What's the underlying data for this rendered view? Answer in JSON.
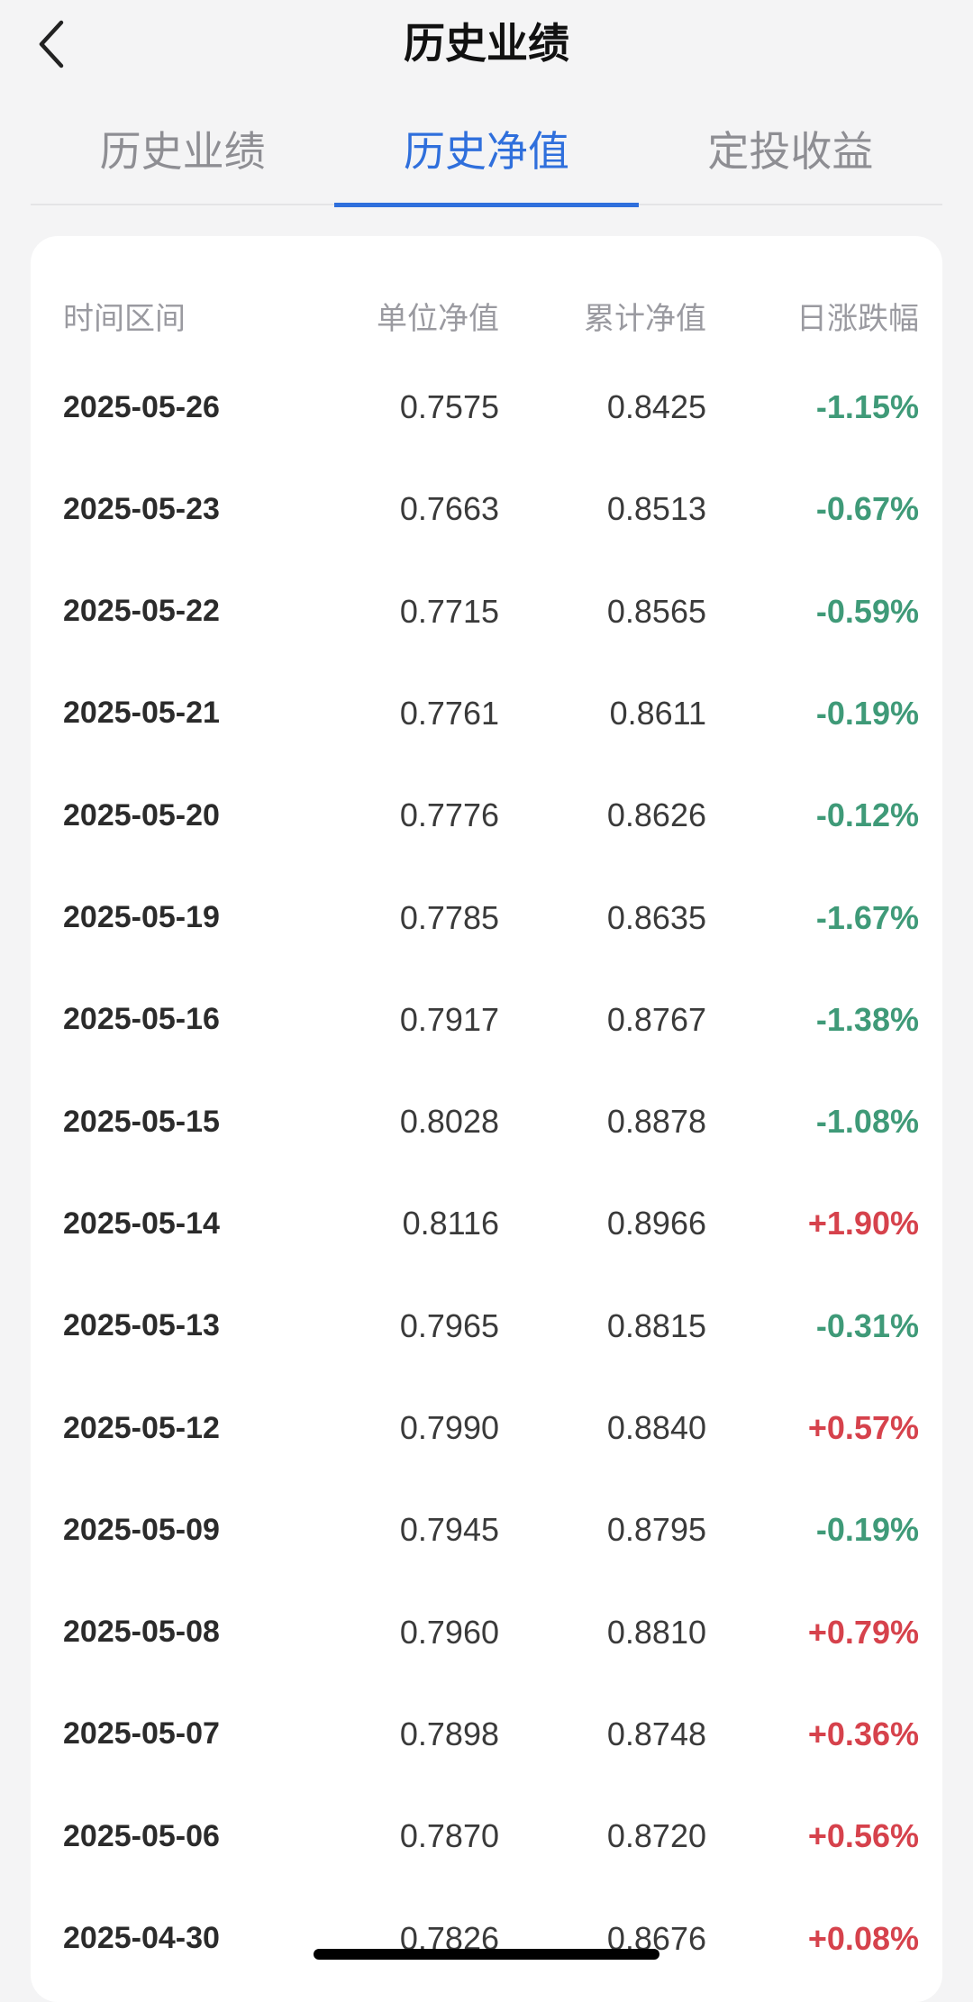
{
  "header": {
    "title": "历史业绩"
  },
  "tabs": [
    {
      "label": "历史业绩",
      "active": false
    },
    {
      "label": "历史净值",
      "active": true
    },
    {
      "label": "定投收益",
      "active": false
    }
  ],
  "table": {
    "columns": [
      "时间区间",
      "单位净值",
      "累计净值",
      "日涨跌幅"
    ],
    "rows": [
      {
        "date": "2025-05-26",
        "unit_nav": "0.7575",
        "acc_nav": "0.8425",
        "change": "-1.15%",
        "dir": "down"
      },
      {
        "date": "2025-05-23",
        "unit_nav": "0.7663",
        "acc_nav": "0.8513",
        "change": "-0.67%",
        "dir": "down"
      },
      {
        "date": "2025-05-22",
        "unit_nav": "0.7715",
        "acc_nav": "0.8565",
        "change": "-0.59%",
        "dir": "down"
      },
      {
        "date": "2025-05-21",
        "unit_nav": "0.7761",
        "acc_nav": "0.8611",
        "change": "-0.19%",
        "dir": "down"
      },
      {
        "date": "2025-05-20",
        "unit_nav": "0.7776",
        "acc_nav": "0.8626",
        "change": "-0.12%",
        "dir": "down"
      },
      {
        "date": "2025-05-19",
        "unit_nav": "0.7785",
        "acc_nav": "0.8635",
        "change": "-1.67%",
        "dir": "down"
      },
      {
        "date": "2025-05-16",
        "unit_nav": "0.7917",
        "acc_nav": "0.8767",
        "change": "-1.38%",
        "dir": "down"
      },
      {
        "date": "2025-05-15",
        "unit_nav": "0.8028",
        "acc_nav": "0.8878",
        "change": "-1.08%",
        "dir": "down"
      },
      {
        "date": "2025-05-14",
        "unit_nav": "0.8116",
        "acc_nav": "0.8966",
        "change": "+1.90%",
        "dir": "up"
      },
      {
        "date": "2025-05-13",
        "unit_nav": "0.7965",
        "acc_nav": "0.8815",
        "change": "-0.31%",
        "dir": "down"
      },
      {
        "date": "2025-05-12",
        "unit_nav": "0.7990",
        "acc_nav": "0.8840",
        "change": "+0.57%",
        "dir": "up"
      },
      {
        "date": "2025-05-09",
        "unit_nav": "0.7945",
        "acc_nav": "0.8795",
        "change": "-0.19%",
        "dir": "down"
      },
      {
        "date": "2025-05-08",
        "unit_nav": "0.7960",
        "acc_nav": "0.8810",
        "change": "+0.79%",
        "dir": "up"
      },
      {
        "date": "2025-05-07",
        "unit_nav": "0.7898",
        "acc_nav": "0.8748",
        "change": "+0.36%",
        "dir": "up"
      },
      {
        "date": "2025-05-06",
        "unit_nav": "0.7870",
        "acc_nav": "0.8720",
        "change": "+0.56%",
        "dir": "up"
      },
      {
        "date": "2025-04-30",
        "unit_nav": "0.7826",
        "acc_nav": "0.8676",
        "change": "+0.08%",
        "dir": "up"
      }
    ]
  },
  "icons": {
    "back": "chevron-left-icon"
  },
  "colors": {
    "accent": "#2f6fdc",
    "down": "#3f9a78",
    "up": "#d6424c"
  }
}
